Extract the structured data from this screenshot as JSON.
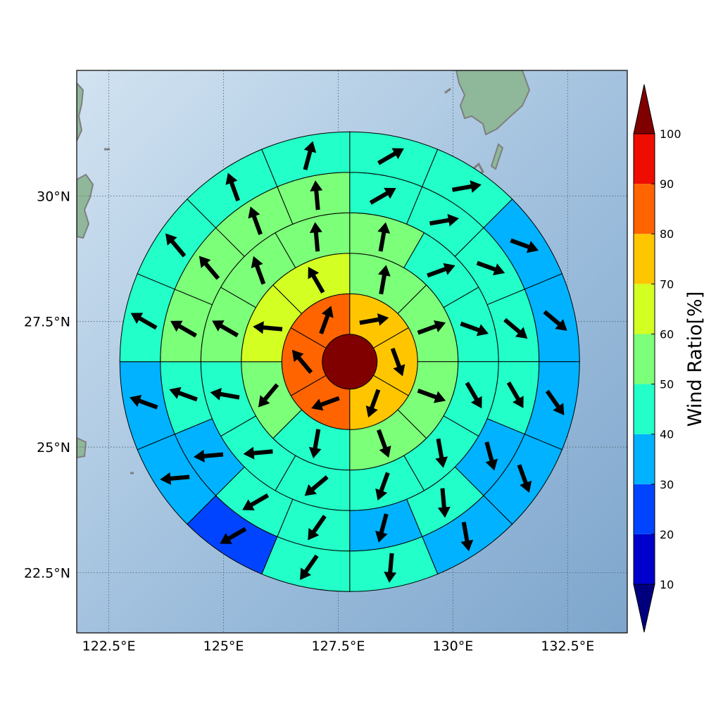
{
  "map": {
    "lon_range": [
      121.8,
      133.8
    ],
    "lat_range": [
      21.3,
      32.5
    ],
    "lon_ticks": [
      {
        "value": 122.5,
        "label": "122.5°E"
      },
      {
        "value": 125,
        "label": "125°E"
      },
      {
        "value": 127.5,
        "label": "127.5°E"
      },
      {
        "value": 130,
        "label": "130°E"
      },
      {
        "value": 132.5,
        "label": "132.5°E"
      }
    ],
    "lat_ticks": [
      {
        "value": 30,
        "label": "30°N"
      },
      {
        "value": 27.5,
        "label": "27.5°N"
      },
      {
        "value": 25,
        "label": "25°N"
      },
      {
        "value": 22.5,
        "label": "22.5°N"
      }
    ],
    "gridlines": true,
    "land_color": "#8fb89a",
    "sea_colors": [
      "#d2e3f1",
      "#7ea6cc"
    ]
  },
  "polar_grid": {
    "center": {
      "lon": 127.75,
      "lat": 26.7
    },
    "ring_count": 6,
    "ring_sectors": [
      1,
      6,
      8,
      12,
      16,
      16
    ],
    "ring_values": [
      [
        100
      ],
      [
        75,
        75,
        75,
        85,
        85,
        85
      ],
      [
        55,
        55,
        55,
        55,
        45,
        55,
        65,
        65
      ],
      [
        55,
        45,
        45,
        45,
        45,
        45,
        45,
        45,
        45,
        55,
        55,
        55
      ],
      [
        45,
        45,
        45,
        45,
        45,
        35,
        45,
        35,
        45,
        45,
        35,
        45,
        55,
        55,
        55,
        55
      ],
      [
        45,
        45,
        35,
        35,
        35,
        35,
        35,
        45,
        45,
        25,
        35,
        35,
        45,
        45,
        45,
        45
      ]
    ],
    "ring_wind_dir": [
      [
        null
      ],
      [
        80,
        160,
        200,
        250,
        320,
        20
      ],
      [
        10,
        70,
        110,
        160,
        190,
        220,
        275,
        330
      ],
      [
        10,
        70,
        110,
        150,
        170,
        200,
        230,
        265,
        280,
        300,
        340,
        355
      ],
      [
        60,
        80,
        110,
        130,
        150,
        165,
        175,
        195,
        215,
        240,
        265,
        290,
        300,
        320,
        340,
        355
      ],
      [
        60,
        80,
        110,
        130,
        145,
        160,
        170,
        185,
        215,
        240,
        265,
        290,
        300,
        320,
        340,
        15
      ]
    ]
  },
  "colorbar": {
    "label": "Wind Ratio[%]",
    "ticks": [
      "10",
      "20",
      "30",
      "40",
      "50",
      "60",
      "70",
      "80",
      "90",
      "100"
    ],
    "levels": [
      10,
      20,
      30,
      40,
      50,
      60,
      70,
      80,
      90,
      100
    ],
    "colors": [
      "#0000cd",
      "#0044ff",
      "#00b2ff",
      "#22ffc8",
      "#7cff79",
      "#d3ff22",
      "#ffc600",
      "#ff6400",
      "#ee0d00"
    ],
    "under_color": "#00007f",
    "over_color": "#800000"
  }
}
